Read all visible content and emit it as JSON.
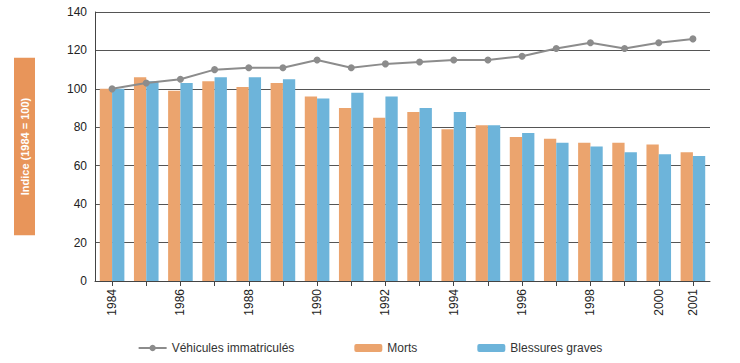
{
  "chart_data": {
    "type": "bar",
    "ylabel": "Indice (1984 = 100)",
    "categories": [
      "1984",
      null,
      "1986",
      null,
      "1988",
      null,
      "1990",
      null,
      "1992",
      null,
      "1994",
      null,
      "1996",
      null,
      "1998",
      null,
      "2000",
      "2001"
    ],
    "series": [
      {
        "name": "Véhicules immatriculés",
        "type": "line",
        "marker": "circle",
        "color": "#8c8c8c",
        "values": [
          100,
          103,
          105,
          110,
          111,
          111,
          115,
          111,
          113,
          114,
          115,
          115,
          117,
          121,
          124,
          121,
          124,
          126
        ]
      },
      {
        "name": "Morts",
        "type": "bar",
        "color": "#eba46e",
        "values": [
          100,
          106,
          99,
          104,
          101,
          103,
          96,
          90,
          85,
          88,
          79,
          81,
          75,
          74,
          72,
          72,
          71,
          67
        ]
      },
      {
        "name": "Blessures graves",
        "type": "bar",
        "color": "#6db4da",
        "values": [
          100,
          104,
          103,
          106,
          106,
          105,
          95,
          98,
          96,
          90,
          88,
          81,
          77,
          72,
          70,
          67,
          66,
          65
        ]
      }
    ],
    "ylim": [
      0,
      140
    ],
    "yticks": [
      0,
      20,
      40,
      60,
      80,
      100,
      120,
      140
    ],
    "grid": true,
    "legend": "bottom"
  }
}
